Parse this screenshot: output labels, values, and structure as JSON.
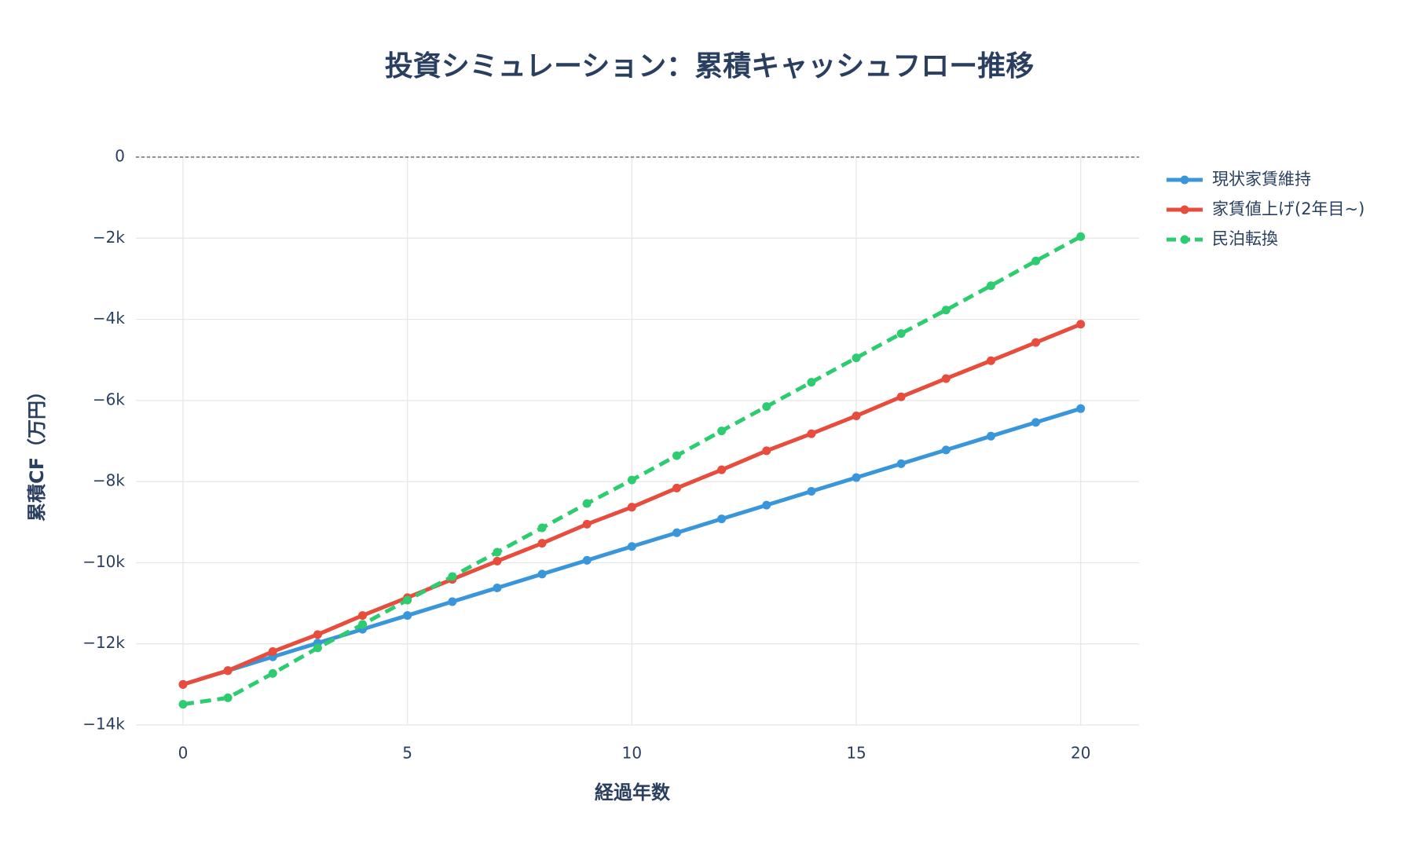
{
  "chart_data": {
    "type": "line",
    "title": "投資シミュレーション：累積キャッシュフロー推移",
    "x_label": "経過年数",
    "y_label": "累積CF（万円）",
    "x": [
      0,
      1,
      2,
      3,
      4,
      5,
      6,
      7,
      8,
      9,
      10,
      11,
      12,
      13,
      14,
      15,
      16,
      17,
      18,
      19,
      20
    ],
    "series": [
      {
        "name": "現状家賃維持",
        "color": "#3a96db",
        "dash": "solid",
        "values": [
          -13000,
          -12660,
          -12320,
          -11980,
          -11640,
          -11300,
          -10960,
          -10620,
          -10280,
          -9940,
          -9600,
          -9260,
          -8920,
          -8580,
          -8240,
          -7900,
          -7560,
          -7220,
          -6880,
          -6540,
          -6200
        ]
      },
      {
        "name": "家賃値上げ(2年目~)",
        "color": "#e74c3c",
        "dash": "solid",
        "values": [
          -13000,
          -12660,
          -12190,
          -11770,
          -11300,
          -10860,
          -10410,
          -9960,
          -9520,
          -9050,
          -8630,
          -8160,
          -7710,
          -7240,
          -6820,
          -6380,
          -5910,
          -5460,
          -5020,
          -4570,
          -4120
        ]
      },
      {
        "name": "民泊転換",
        "color": "#2ecc71",
        "dash": "dashed",
        "values": [
          -13490,
          -13330,
          -12730,
          -12100,
          -11520,
          -10920,
          -10340,
          -9740,
          -9140,
          -8540,
          -7960,
          -7360,
          -6750,
          -6150,
          -5550,
          -4950,
          -4350,
          -3770,
          -3170,
          -2560,
          -1960
        ]
      }
    ],
    "xlim": [
      -1.05,
      21.3
    ],
    "ylim": [
      -14000,
      0
    ],
    "xticks": [
      0,
      5,
      10,
      15,
      20
    ],
    "yticks": [
      0,
      {
        "value": -2000,
        "label": "−2k"
      },
      {
        "value": -4000,
        "label": "−4k"
      },
      {
        "value": -6000,
        "label": "−6k"
      },
      {
        "value": -8000,
        "label": "−8k"
      },
      {
        "value": -10000,
        "label": "−10k"
      },
      {
        "value": -12000,
        "label": "−12k"
      },
      {
        "value": -14000,
        "label": "−14k"
      }
    ],
    "hline": 0,
    "grid": true,
    "legend": "right"
  }
}
